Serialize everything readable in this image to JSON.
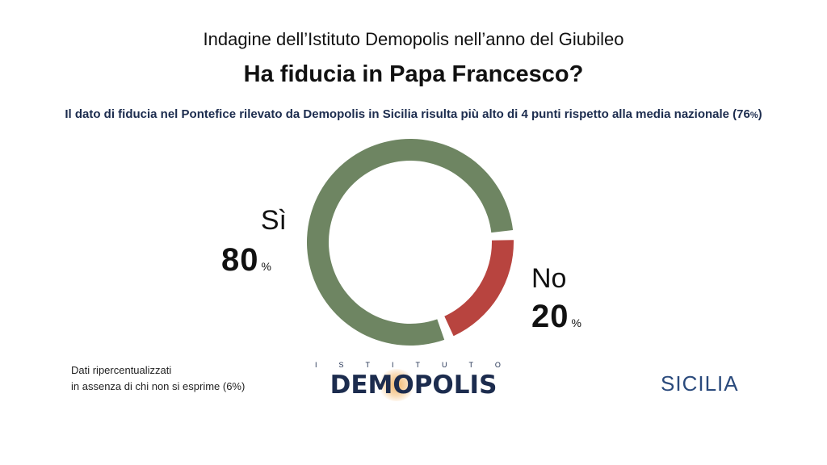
{
  "header": {
    "supertitle": "Indagine dell’Istituto Demopolis nell’anno del Giubileo",
    "title": "Ha fiducia in Papa Francesco?",
    "subtitle_main": "Il dato di fiducia nel Pontefice rilevato da Demopolis in Sicilia risulta più alto di 4 punti rispetto alla media nazionale (76",
    "subtitle_pct": "%",
    "subtitle_close": ")"
  },
  "chart_data": {
    "type": "pie",
    "donut": true,
    "categories": [
      "Sì",
      "No"
    ],
    "values": [
      80,
      20
    ],
    "value_labels": [
      "80",
      "20"
    ],
    "unit": "%",
    "colors": [
      "#6e8562",
      "#b8443f"
    ]
  },
  "footnote": {
    "line1": "Dati ripercentualizzati",
    "line2": "in assenza di chi non si esprime (6%)"
  },
  "logo": {
    "top": "ISTITUTO",
    "main": "DEMOPOLIS"
  },
  "region": "SICILIA"
}
